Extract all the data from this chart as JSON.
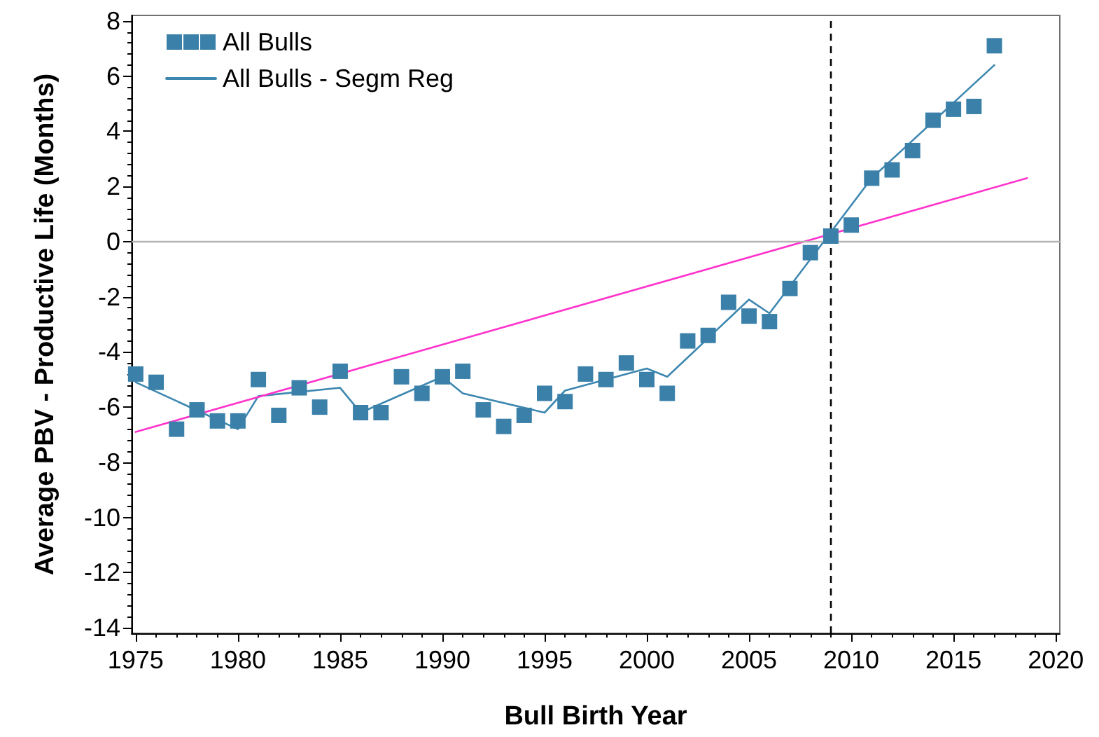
{
  "chart_data": {
    "type": "scatter",
    "xlabel": "Bull Birth Year",
    "ylabel": "Average PBV - Productive Life (Months)",
    "xlim": [
      1974.8,
      2020.2
    ],
    "ylim": [
      -14.2,
      8.2
    ],
    "xticks": [
      1975,
      {
        "value": 1976,
        "label": null
      },
      {
        "value": 1977,
        "label": null
      },
      {
        "value": 1978,
        "label": null
      },
      {
        "value": 1979,
        "label": null
      },
      1980,
      {
        "value": 1981,
        "label": null
      },
      {
        "value": 1982,
        "label": null
      },
      {
        "value": 1983,
        "label": null
      },
      {
        "value": 1984,
        "label": null
      },
      1985,
      {
        "value": 1986,
        "label": null
      },
      {
        "value": 1987,
        "label": null
      },
      {
        "value": 1988,
        "label": null
      },
      {
        "value": 1989,
        "label": null
      },
      1990,
      {
        "value": 1991,
        "label": null
      },
      {
        "value": 1992,
        "label": null
      },
      {
        "value": 1993,
        "label": null
      },
      {
        "value": 1994,
        "label": null
      },
      1995,
      {
        "value": 1996,
        "label": null
      },
      {
        "value": 1997,
        "label": null
      },
      {
        "value": 1998,
        "label": null
      },
      {
        "value": 1999,
        "label": null
      },
      2000,
      {
        "value": 2001,
        "label": null
      },
      {
        "value": 2002,
        "label": null
      },
      {
        "value": 2003,
        "label": null
      },
      {
        "value": 2004,
        "label": null
      },
      2005,
      {
        "value": 2006,
        "label": null
      },
      {
        "value": 2007,
        "label": null
      },
      {
        "value": 2008,
        "label": null
      },
      {
        "value": 2009,
        "label": null
      },
      2010,
      {
        "value": 2011,
        "label": null
      },
      {
        "value": 2012,
        "label": null
      },
      {
        "value": 2013,
        "label": null
      },
      {
        "value": 2014,
        "label": null
      },
      2015,
      {
        "value": 2016,
        "label": null
      },
      {
        "value": 2017,
        "label": null
      },
      {
        "value": 2018,
        "label": null
      },
      {
        "value": 2019,
        "label": null
      },
      2020
    ],
    "yticks": [
      -14,
      {
        "value": -13.6,
        "label": null
      },
      {
        "value": -13.2,
        "label": null
      },
      {
        "value": -12.8,
        "label": null
      },
      {
        "value": -12.4,
        "label": null
      },
      -12,
      {
        "value": -11.6,
        "label": null
      },
      {
        "value": -11.2,
        "label": null
      },
      {
        "value": -10.8,
        "label": null
      },
      {
        "value": -10.4,
        "label": null
      },
      -10,
      {
        "value": -9.6,
        "label": null
      },
      {
        "value": -9.2,
        "label": null
      },
      {
        "value": -8.8,
        "label": null
      },
      {
        "value": -8.4,
        "label": null
      },
      -8,
      {
        "value": -7.6,
        "label": null
      },
      {
        "value": -7.2,
        "label": null
      },
      {
        "value": -6.8,
        "label": null
      },
      {
        "value": -6.4,
        "label": null
      },
      -6,
      {
        "value": -5.6,
        "label": null
      },
      {
        "value": -5.2,
        "label": null
      },
      {
        "value": -4.8,
        "label": null
      },
      {
        "value": -4.4,
        "label": null
      },
      -4,
      {
        "value": -3.6,
        "label": null
      },
      {
        "value": -3.2,
        "label": null
      },
      {
        "value": -2.8,
        "label": null
      },
      {
        "value": -2.4,
        "label": null
      },
      -2,
      {
        "value": -1.6,
        "label": null
      },
      {
        "value": -1.2,
        "label": null
      },
      {
        "value": -0.8,
        "label": null
      },
      {
        "value": -0.4,
        "label": null
      },
      0,
      {
        "value": 0.4,
        "label": null
      },
      {
        "value": 0.8,
        "label": null
      },
      {
        "value": 1.2,
        "label": null
      },
      {
        "value": 1.6,
        "label": null
      },
      2,
      {
        "value": 2.4,
        "label": null
      },
      {
        "value": 2.8,
        "label": null
      },
      {
        "value": 3.2,
        "label": null
      },
      {
        "value": 3.6,
        "label": null
      },
      4,
      {
        "value": 4.4,
        "label": null
      },
      {
        "value": 4.8,
        "label": null
      },
      {
        "value": 5.2,
        "label": null
      },
      {
        "value": 5.6,
        "label": null
      },
      6,
      {
        "value": 6.4,
        "label": null
      },
      {
        "value": 6.8,
        "label": null
      },
      {
        "value": 7.2,
        "label": null
      },
      {
        "value": 7.6,
        "label": null
      },
      8
    ],
    "grid": false,
    "legend": "top left",
    "series": [
      {
        "name": "All Bulls",
        "marker": "square",
        "color": "#3a80a9",
        "x": [
          1975,
          1976,
          1977,
          1978,
          1979,
          1980,
          1981,
          1982,
          1983,
          1984,
          1985,
          1986,
          1987,
          1988,
          1989,
          1990,
          1991,
          1992,
          1993,
          1994,
          1995,
          1996,
          1997,
          1998,
          1999,
          2000,
          2001,
          2002,
          2003,
          2004,
          2005,
          2006,
          2007,
          2008,
          2009,
          2010,
          2011,
          2012,
          2013,
          2014,
          2015,
          2016,
          2017
        ],
        "values": [
          -4.8,
          -5.1,
          -6.8,
          -6.1,
          -6.5,
          -6.5,
          -5.0,
          -6.3,
          -5.3,
          -6.0,
          -4.7,
          -6.2,
          -6.2,
          -4.9,
          -5.5,
          -4.9,
          -4.7,
          -6.1,
          -6.7,
          -6.3,
          -5.5,
          -5.8,
          -4.8,
          -5.0,
          -4.4,
          -5.0,
          -5.5,
          -3.6,
          -3.4,
          -2.2,
          -2.7,
          -2.9,
          -1.7,
          -0.4,
          0.2,
          0.6,
          2.3,
          2.6,
          3.3,
          4.4,
          4.8,
          4.9,
          7.1
        ]
      },
      {
        "name": "All Bulls - Segm Reg",
        "type": "line",
        "marker": "none",
        "line_style": "solid",
        "color": "#3d87b0",
        "x": [
          1975,
          1980,
          1981,
          1985,
          1986,
          1990,
          1991,
          1995,
          1996,
          2000,
          2001,
          2005,
          2006,
          2011,
          2017
        ],
        "values": [
          -5.1,
          -6.8,
          -5.6,
          -5.3,
          -6.2,
          -4.9,
          -5.5,
          -6.2,
          -5.4,
          -4.6,
          -4.9,
          -2.1,
          -2.6,
          2.3,
          6.4
        ]
      },
      {
        "type": "line",
        "marker": "none",
        "line_style": "solid",
        "color": "#ff33cc",
        "x": [
          1975,
          2018.6
        ],
        "values": [
          -6.9,
          2.3
        ]
      }
    ],
    "ref_lines": [
      {
        "axis": "y",
        "value": 0,
        "color": "#b3b3b3",
        "line_style": "solid"
      },
      {
        "axis": "x",
        "value": 2009,
        "color": "#000000",
        "line_style": "dashed"
      }
    ]
  }
}
